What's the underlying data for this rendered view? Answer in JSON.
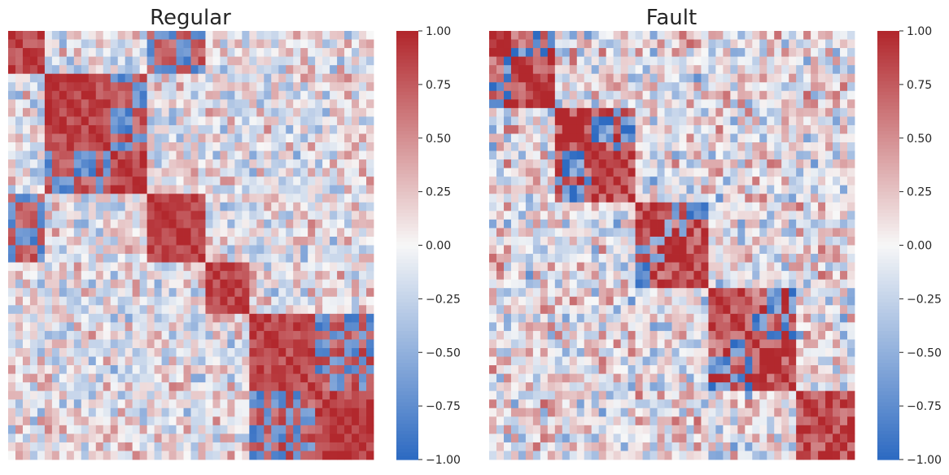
{
  "chart_data": [
    {
      "type": "heatmap",
      "title": "Regular",
      "size": 50,
      "seed": 7,
      "blocks": [
        [
          0,
          5,
          1
        ],
        [
          5,
          14,
          1
        ],
        [
          14,
          19,
          -1
        ],
        [
          19,
          27,
          1
        ],
        [
          27,
          33,
          1
        ],
        [
          33,
          42,
          -1
        ],
        [
          42,
          50,
          1
        ]
      ],
      "anti_pairs": [
        [
          1,
          2
        ],
        [
          0,
          3
        ],
        [
          5,
          6
        ]
      ],
      "noise": 0.18,
      "ylim": [
        -1,
        1
      ],
      "colorbar": {
        "ticks": [
          "−1.00",
          "−0.75",
          "−0.50",
          "−0.25",
          "0.00",
          "0.25",
          "0.50",
          "0.75",
          "1.00"
        ]
      }
    },
    {
      "type": "heatmap",
      "title": "Fault",
      "size": 50,
      "seed": 23,
      "blocks": [
        [
          0,
          3,
          1
        ],
        [
          3,
          9,
          1
        ],
        [
          9,
          14,
          -1
        ],
        [
          14,
          20,
          1
        ],
        [
          20,
          24,
          -1
        ],
        [
          24,
          30,
          1
        ],
        [
          30,
          36,
          -1
        ],
        [
          36,
          42,
          1
        ],
        [
          42,
          50,
          -1
        ]
      ],
      "anti_pairs": [
        [
          0,
          1
        ],
        [
          2,
          3
        ],
        [
          4,
          5
        ],
        [
          6,
          7
        ]
      ],
      "noise": 0.3,
      "ylim": [
        -1,
        1
      ],
      "colorbar": {
        "ticks": [
          "−1.00",
          "−0.75",
          "−0.50",
          "−0.25",
          "0.00",
          "0.25",
          "0.50",
          "0.75",
          "1.00"
        ]
      }
    }
  ],
  "colors": {
    "neg": "#2e6bc2",
    "mid": "#f7f7f7",
    "pos": "#b2282d"
  }
}
